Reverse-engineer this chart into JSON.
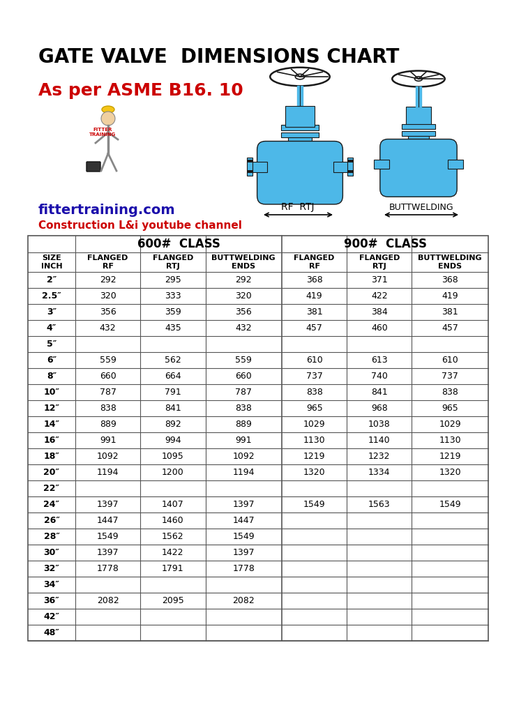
{
  "title": "GATE VALVE  DIMENSIONS CHART",
  "subtitle": "As per ASME B16. 10",
  "website": "fittertraining.com",
  "channel": "Construction L&i youtube channel",
  "title_fontsize": 20,
  "subtitle_fontsize": 18,
  "website_fontsize": 14,
  "channel_fontsize": 11,
  "bg_color": "#ffffff",
  "title_color": "#000000",
  "subtitle_color": "#cc0000",
  "website_color": "#1a0dab",
  "channel_color": "#cc0000",
  "table_header_600": "600#  CLASS",
  "table_header_900": "900#  CLASS",
  "col_headers": [
    "SIZE\nINCH",
    "FLANGED\nRF",
    "FLANGED\nRTJ",
    "BUTTWELDING\nENDS",
    "FLANGED\nRF",
    "FLANGED\nRTJ",
    "BUTTWELDING\nENDS"
  ],
  "rows": [
    [
      "2″",
      "292",
      "295",
      "292",
      "368",
      "371",
      "368"
    ],
    [
      "2.5″",
      "320",
      "333",
      "320",
      "419",
      "422",
      "419"
    ],
    [
      "3″",
      "356",
      "359",
      "356",
      "381",
      "384",
      "381"
    ],
    [
      "4″",
      "432",
      "435",
      "432",
      "457",
      "460",
      "457"
    ],
    [
      "5″",
      "",
      "",
      "",
      "",
      "",
      ""
    ],
    [
      "6″",
      "559",
      "562",
      "559",
      "610",
      "613",
      "610"
    ],
    [
      "8″",
      "660",
      "664",
      "660",
      "737",
      "740",
      "737"
    ],
    [
      "10″",
      "787",
      "791",
      "787",
      "838",
      "841",
      "838"
    ],
    [
      "12″",
      "838",
      "841",
      "838",
      "965",
      "968",
      "965"
    ],
    [
      "14″",
      "889",
      "892",
      "889",
      "1029",
      "1038",
      "1029"
    ],
    [
      "16″",
      "991",
      "994",
      "991",
      "1130",
      "1140",
      "1130"
    ],
    [
      "18″",
      "1092",
      "1095",
      "1092",
      "1219",
      "1232",
      "1219"
    ],
    [
      "20″",
      "1194",
      "1200",
      "1194",
      "1320",
      "1334",
      "1320"
    ],
    [
      "22″",
      "",
      "",
      "",
      "",
      "",
      ""
    ],
    [
      "24″",
      "1397",
      "1407",
      "1397",
      "1549",
      "1563",
      "1549"
    ],
    [
      "26″",
      "1447",
      "1460",
      "1447",
      "",
      "",
      ""
    ],
    [
      "28″",
      "1549",
      "1562",
      "1549",
      "",
      "",
      ""
    ],
    [
      "30″",
      "1397",
      "1422",
      "1397",
      "",
      "",
      ""
    ],
    [
      "32″",
      "1778",
      "1791",
      "1778",
      "",
      "",
      ""
    ],
    [
      "34″",
      "",
      "",
      "",
      "",
      "",
      ""
    ],
    [
      "36″",
      "2082",
      "2095",
      "2082",
      "",
      "",
      ""
    ],
    [
      "42″",
      "",
      "",
      "",
      "",
      "",
      ""
    ],
    [
      "48″",
      "",
      "",
      "",
      "",
      "",
      ""
    ]
  ],
  "valve_blue": "#4db8e8",
  "valve_dark": "#2090cc",
  "valve_black": "#1a1a1a"
}
